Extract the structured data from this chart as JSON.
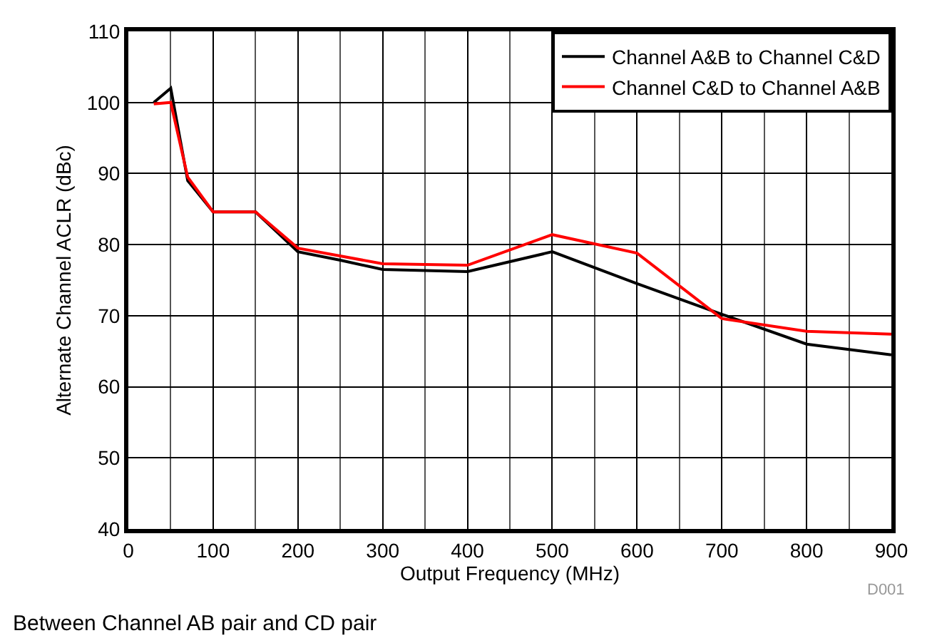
{
  "chart_data": {
    "type": "line",
    "xlabel": "Output Frequency (MHz)",
    "ylabel": "Alternate Channel ACLR (dBc)",
    "annotations": [
      "D001",
      "Between Channel AB pair and CD pair"
    ],
    "series": [
      {
        "name": "Channel A&B to Channel C&D",
        "color": "#000000",
        "x": [
          30,
          50,
          70,
          100,
          150,
          200,
          250,
          300,
          400,
          500,
          600,
          700,
          800,
          900
        ],
        "values": [
          100,
          102,
          89,
          84.6,
          84.6,
          79,
          77.8,
          76.5,
          76.2,
          79,
          74.5,
          70.2,
          66,
          64.5
        ]
      },
      {
        "name": "Channel C&D to Channel A&B",
        "color": "#ff0000",
        "x": [
          30,
          50,
          70,
          100,
          150,
          200,
          300,
          400,
          500,
          600,
          700,
          800,
          900
        ],
        "values": [
          99.8,
          100,
          89.5,
          84.6,
          84.6,
          79.5,
          77.3,
          77.1,
          81.4,
          78.8,
          69.6,
          67.8,
          67.4
        ]
      }
    ],
    "xlim": [
      0,
      900
    ],
    "xticks": [
      0,
      100,
      200,
      300,
      400,
      500,
      600,
      700,
      800,
      900
    ],
    "ylim": [
      40,
      110
    ],
    "yticks": [
      40,
      50,
      60,
      70,
      80,
      90,
      100,
      110
    ],
    "grid": true,
    "legend": "top right",
    "marker": "none",
    "line_style": "solid"
  }
}
